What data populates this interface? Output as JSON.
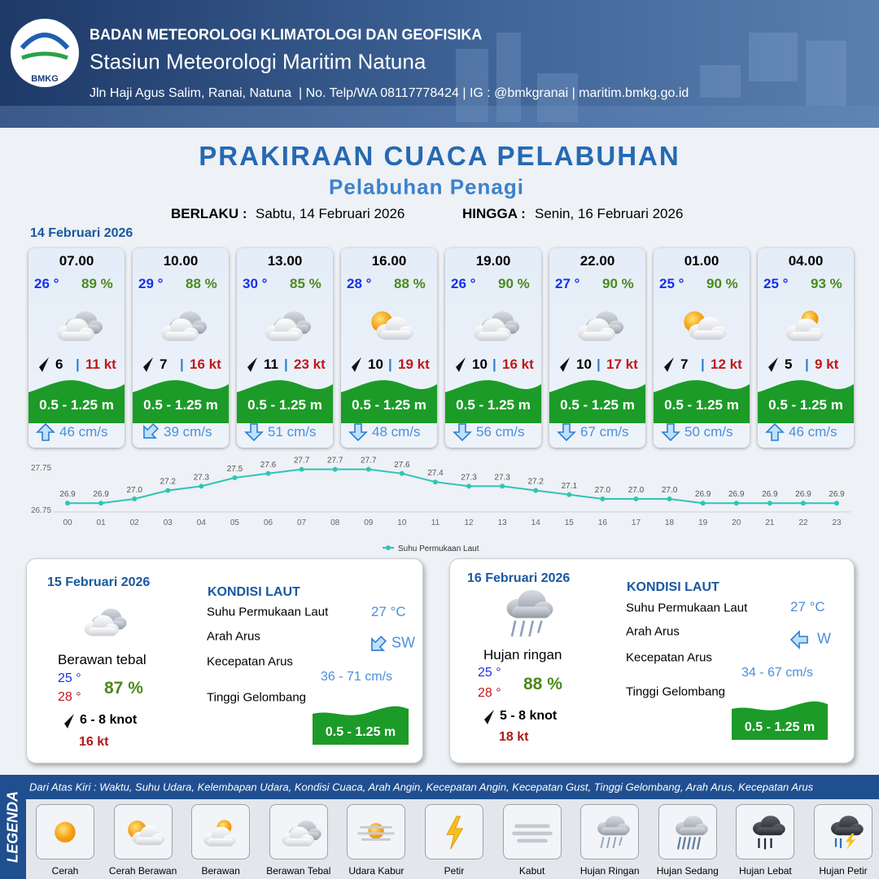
{
  "header": {
    "logo": "BMKG",
    "agency": "BADAN METEOROLOGI KLIMATOLOGI DAN GEOFISIKA",
    "station": "Stasiun Meteorologi Maritim Natuna",
    "contact": "Jln Haji Agus Salim, Ranai, Natuna  | No. Telp/WA 08117778424 | IG : @bmkgranai | maritim.bmkg.go.id"
  },
  "title": "PRAKIRAAN CUACA PELABUHAN",
  "subtitle": "Pelabuhan Penagi",
  "validity": {
    "from_label": "BERLAKU :",
    "from": "Sabtu, 14 Februari 2026",
    "to_label": "HINGGA :",
    "to": "Senin, 16 Februari 2026"
  },
  "day1": {
    "date": "14 Februari 2026",
    "separator": "|",
    "forecasts": [
      {
        "time": "07.00",
        "temp": "26 °",
        "humidity": "89 %",
        "wind": "6",
        "gust": "11 kt",
        "wave": "0.5 - 1.25 m",
        "current": "46 cm/s"
      },
      {
        "time": "10.00",
        "temp": "29 °",
        "humidity": "88 %",
        "wind": "7",
        "gust": "16 kt",
        "wave": "0.5 - 1.25 m",
        "current": "39 cm/s"
      },
      {
        "time": "13.00",
        "temp": "30 °",
        "humidity": "85 %",
        "wind": "11",
        "gust": "23 kt",
        "wave": "0.5 - 1.25 m",
        "current": "51 cm/s"
      },
      {
        "time": "16.00",
        "temp": "28 °",
        "humidity": "88 %",
        "wind": "10",
        "gust": "19 kt",
        "wave": "0.5 - 1.25 m",
        "current": "48 cm/s"
      },
      {
        "time": "19.00",
        "temp": "26 °",
        "humidity": "90 %",
        "wind": "10",
        "gust": "16 kt",
        "wave": "0.5 - 1.25 m",
        "current": "56 cm/s"
      },
      {
        "time": "22.00",
        "temp": "27 °",
        "humidity": "90 %",
        "wind": "10",
        "gust": "17 kt",
        "wave": "0.5 - 1.25 m",
        "current": "67 cm/s"
      },
      {
        "time": "01.00",
        "temp": "25 °",
        "humidity": "90 %",
        "wind": "7",
        "gust": "12 kt",
        "wave": "0.5 - 1.25 m",
        "current": "50 cm/s"
      },
      {
        "time": "04.00",
        "temp": "25 °",
        "humidity": "93 %",
        "wind": "5",
        "gust": "9 kt",
        "wave": "0.5 - 1.25 m",
        "current": "46 cm/s"
      }
    ]
  },
  "chart_data": {
    "type": "line",
    "categories": [
      "00",
      "01",
      "02",
      "03",
      "04",
      "05",
      "06",
      "07",
      "08",
      "09",
      "10",
      "11",
      "12",
      "13",
      "14",
      "15",
      "16",
      "17",
      "18",
      "19",
      "20",
      "21",
      "22",
      "23"
    ],
    "series": [
      {
        "name": "Suhu Permukaan Laut",
        "color": "#2ec4b6",
        "values": [
          26.9,
          26.9,
          27.0,
          27.2,
          27.3,
          27.5,
          27.6,
          27.7,
          27.7,
          27.7,
          27.6,
          27.4,
          27.3,
          27.3,
          27.2,
          27.1,
          27.0,
          27.0,
          27.0,
          26.9,
          26.9,
          26.9,
          26.9,
          26.9
        ],
        "value_labels": [
          "26.9",
          "26.9",
          "27.0",
          "27.2",
          "27.3",
          "27.5",
          "27.6",
          "27.7",
          "27.7",
          "27.7",
          "27.6",
          "27.4",
          "27.3",
          "27.3",
          "27.2",
          "27.1",
          "27.0",
          "27.0",
          "27.0",
          "26.9",
          "26.9",
          "26.9",
          "26.9",
          "26.9"
        ]
      }
    ],
    "ylim": [
      26.75,
      27.75
    ],
    "yticks": [
      26.75,
      27.75
    ],
    "grid": false
  },
  "days": [
    {
      "date": "15 Februari 2026",
      "weather": "Berawan tebal",
      "temp_min": "25 °",
      "temp_max": "28 °",
      "humidity": "87 %",
      "wind": "6 - 8 knot",
      "gust": "16 kt",
      "sea_title": "KONDISI LAUT",
      "sst_label": "Suhu Permukaan Laut",
      "sst": "27 °C",
      "current_dir_label": "Arah Arus",
      "current_dir": "SW",
      "current_speed_label": "Kecepatan Arus",
      "current_speed": "36 - 71 cm/s",
      "wave_label": "Tinggi Gelombang",
      "wave": "0.5 - 1.25 m"
    },
    {
      "date": "16 Februari 2026",
      "weather": "Hujan ringan",
      "temp_min": "25 °",
      "temp_max": "28 °",
      "humidity": "88 %",
      "wind": "5 - 8 knot",
      "gust": "18 kt",
      "sea_title": "KONDISI LAUT",
      "sst_label": "Suhu Permukaan Laut",
      "sst": "27 °C",
      "current_dir_label": "Arah Arus",
      "current_dir": "W",
      "current_speed_label": "Kecepatan Arus",
      "current_speed": "34 - 67 cm/s",
      "wave_label": "Tinggi Gelombang",
      "wave": "0.5 - 1.25 m"
    }
  ],
  "legend": {
    "title": "LEGENDA",
    "description": "Dari Atas Kiri : Waktu, Suhu Udara, Kelembapan Udara, Kondisi Cuaca, Arah Angin, Kecepatan Angin, Kecepatan Gust, Tinggi Gelombang, Arah Arus, Kecepatan Arus",
    "items": [
      "Cerah",
      "Cerah Berawan",
      "Berawan",
      "Berawan Tebal",
      "Udara Kabur",
      "Petir",
      "Kabut",
      "Hujan Ringan",
      "Hujan Sedang",
      "Hujan Lebat",
      "Hujan Petir"
    ]
  }
}
